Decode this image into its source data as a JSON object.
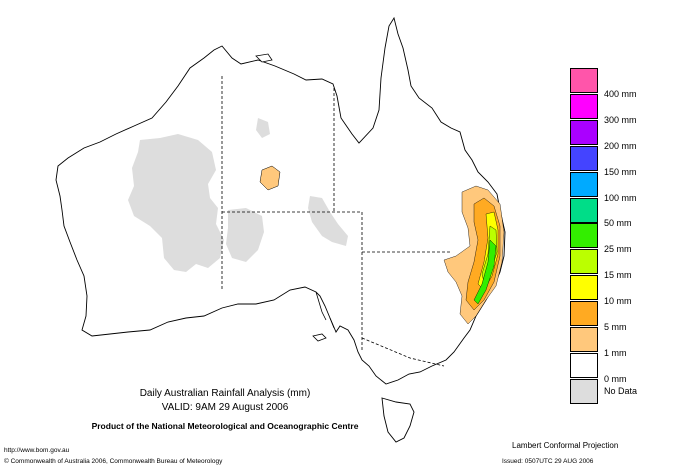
{
  "map": {
    "title": "Daily Australian Rainfall Analysis (mm)",
    "valid": "VALID: 9AM 29 August 2006",
    "product": "Product of the National Meteorological and Oceanographic Centre",
    "projection": "Lambert Conformal Projection",
    "website": "http://www.bom.gov.au",
    "copyright": "© Commonwealth of Australia 2006, Commonwealth Bureau of Meteorology",
    "issued": "Issued: 0507UTC 29 AUG 2006"
  },
  "legend": [
    {
      "label": "400 mm",
      "color": "#ff55aa"
    },
    {
      "label": "300 mm",
      "color": "#ff00ff"
    },
    {
      "label": "200 mm",
      "color": "#aa00ff"
    },
    {
      "label": "150 mm",
      "color": "#4444ff"
    },
    {
      "label": "100 mm",
      "color": "#00aaff"
    },
    {
      "label": "50 mm",
      "color": "#00dd88"
    },
    {
      "label": "25 mm",
      "color": "#33ee00"
    },
    {
      "label": "15 mm",
      "color": "#bbff00"
    },
    {
      "label": "10 mm",
      "color": "#ffff00"
    },
    {
      "label": "5 mm",
      "color": "#ffaa22"
    },
    {
      "label": "1 mm",
      "color": "#ffc87c"
    },
    {
      "label": "0 mm",
      "color": "#ffffff"
    },
    {
      "label": "No Data",
      "color": "#dddddd"
    }
  ]
}
